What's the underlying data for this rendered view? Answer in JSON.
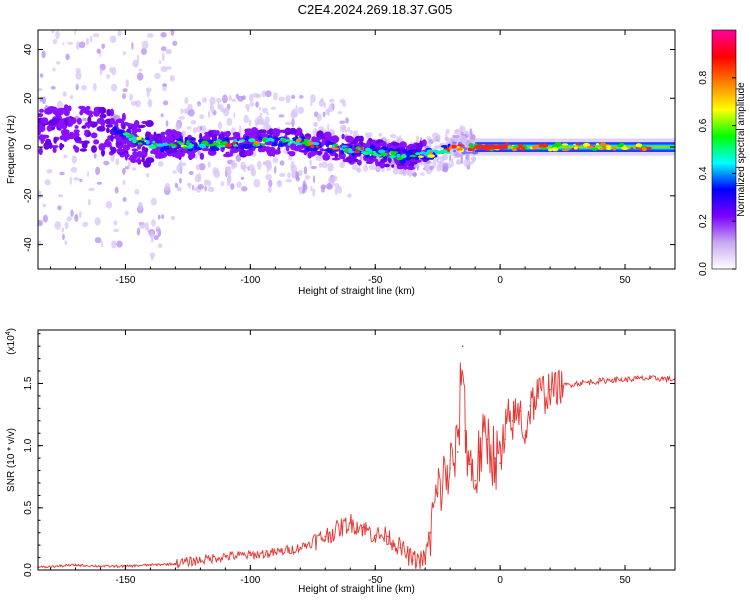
{
  "title": "C2E4.2024.269.18.37.G05",
  "chart_data": [
    {
      "type": "heatmap",
      "xlabel": "Height of straight line (km)",
      "ylabel": "Frequency (Hz)",
      "xlim": [
        -185,
        70
      ],
      "ylim": [
        -50,
        48
      ],
      "xticks": [
        -150,
        -100,
        -50,
        0,
        50
      ],
      "yticks": [
        -40,
        -20,
        0,
        20,
        40
      ],
      "xtick_labels": [
        "-150",
        "-100",
        "-50",
        "0",
        "50"
      ],
      "ytick_labels": [
        "-40",
        "-20",
        "0",
        "20",
        "40"
      ],
      "colorbar": {
        "label": "Normalized spectral amplitude",
        "range": [
          0.0,
          1.0
        ],
        "ticks": [
          0.0,
          0.2,
          0.4,
          0.6,
          0.8
        ],
        "tick_labels": [
          "0.0",
          "0.2",
          "0.4",
          "0.6",
          "0.8"
        ],
        "colors": [
          "#ffffff",
          "#c8a8f0",
          "#7a00ff",
          "#0000ff",
          "#00ffff",
          "#00ff00",
          "#ffff00",
          "#ff8000",
          "#ff0000",
          "#ff00a0"
        ]
      },
      "ridge": {
        "x": [
          -185,
          -170,
          -155,
          -140,
          -120,
          -100,
          -80,
          -60,
          -45,
          -35,
          -25,
          -15,
          -5,
          5,
          20,
          70
        ],
        "y": [
          7,
          8,
          6,
          1,
          1,
          2,
          2,
          -1,
          -3,
          -4,
          -2,
          0,
          0,
          0,
          0,
          0
        ]
      }
    },
    {
      "type": "line",
      "xlabel": "Height of straight line (km)",
      "ylabel": "SNR (10 * v/v)",
      "scale_label": "(x10",
      "scale_exp": "4",
      "xlim": [
        -185,
        70
      ],
      "ylim": [
        0,
        1.93
      ],
      "xticks": [
        -150,
        -100,
        -50,
        0,
        50
      ],
      "yticks": [
        0.0,
        0.5,
        1.0,
        1.5
      ],
      "xtick_labels": [
        "-150",
        "-100",
        "-50",
        "0",
        "50"
      ],
      "ytick_labels": [
        "0.0",
        "0.5",
        "1.0",
        "1.5"
      ],
      "color": "#e8332f",
      "x": [
        -185,
        -170,
        -160,
        -150,
        -140,
        -130,
        -120,
        -110,
        -100,
        -90,
        -80,
        -70,
        -60,
        -55,
        -50,
        -45,
        -40,
        -35,
        -30,
        -28,
        -25,
        -20,
        -17,
        -15,
        -14,
        -12,
        -10,
        -8,
        -5,
        -2,
        0,
        2,
        5,
        8,
        10,
        12,
        15,
        20,
        25,
        30,
        35,
        40,
        45,
        50,
        55,
        60,
        65,
        70
      ],
      "y": [
        0.02,
        0.04,
        0.03,
        0.03,
        0.04,
        0.05,
        0.08,
        0.11,
        0.12,
        0.14,
        0.18,
        0.27,
        0.38,
        0.34,
        0.28,
        0.27,
        0.18,
        0.08,
        0.09,
        0.3,
        0.62,
        0.82,
        0.95,
        1.8,
        1.12,
        0.85,
        0.72,
        0.95,
        1.05,
        0.9,
        0.86,
        1.05,
        1.2,
        1.28,
        1.08,
        1.32,
        1.4,
        1.45,
        1.48,
        1.5,
        1.51,
        1.52,
        1.53,
        1.53,
        1.54,
        1.54,
        1.54,
        1.53
      ]
    }
  ]
}
